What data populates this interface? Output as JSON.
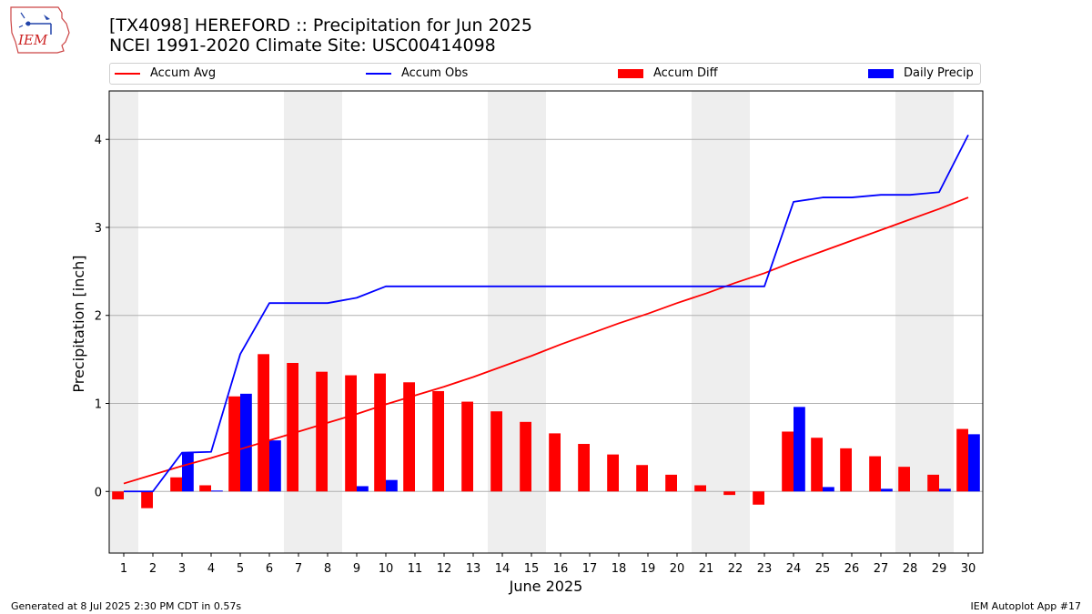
{
  "header": {
    "title_line1": "[TX4098] HEREFORD :: Precipitation for Jun 2025",
    "title_line2": "NCEI 1991-2020 Climate Site: USC00414098"
  },
  "logo": {
    "text": "IEM"
  },
  "footer": {
    "left": "Generated at 8 Jul 2025 2:30 PM CDT in 0.57s",
    "right": "IEM Autoplot App #17"
  },
  "legend": [
    {
      "label": "Accum Avg",
      "kind": "line",
      "color": "#ff0000"
    },
    {
      "label": "Accum Obs",
      "kind": "line",
      "color": "#0000ff"
    },
    {
      "label": "Accum Diff",
      "kind": "bar",
      "color": "#ff0000"
    },
    {
      "label": "Daily Precip",
      "kind": "bar",
      "color": "#0000ff"
    }
  ],
  "chart_data": {
    "type": "bar",
    "xlabel": "June 2025",
    "ylabel": "Precipitation [inch]",
    "x": [
      1,
      2,
      3,
      4,
      5,
      6,
      7,
      8,
      9,
      10,
      11,
      12,
      13,
      14,
      15,
      16,
      17,
      18,
      19,
      20,
      21,
      22,
      23,
      24,
      25,
      26,
      27,
      28,
      29,
      30
    ],
    "xlim": [
      0.5,
      30.5
    ],
    "ylim": [
      -0.7,
      4.55
    ],
    "yticks": [
      0,
      1,
      2,
      3,
      4
    ],
    "grid": true,
    "legend_position": "top",
    "weekend_shading": [
      [
        0.5,
        1.5
      ],
      [
        6.5,
        8.5
      ],
      [
        13.5,
        15.5
      ],
      [
        20.5,
        22.5
      ],
      [
        27.5,
        29.5
      ]
    ],
    "series": [
      {
        "name": "Accum Avg",
        "type": "line",
        "color": "#ff0000",
        "values": [
          0.09,
          0.19,
          0.29,
          0.38,
          0.48,
          0.58,
          0.68,
          0.78,
          0.88,
          0.99,
          1.09,
          1.19,
          1.3,
          1.42,
          1.54,
          1.67,
          1.79,
          1.91,
          2.02,
          2.14,
          2.25,
          2.37,
          2.48,
          2.61,
          2.73,
          2.85,
          2.97,
          3.09,
          3.21,
          3.34
        ]
      },
      {
        "name": "Accum Obs",
        "type": "line",
        "color": "#0000ff",
        "values": [
          0.0,
          0.0,
          0.44,
          0.45,
          1.56,
          2.14,
          2.14,
          2.14,
          2.2,
          2.33,
          2.33,
          2.33,
          2.33,
          2.33,
          2.33,
          2.33,
          2.33,
          2.33,
          2.33,
          2.33,
          2.33,
          2.33,
          2.33,
          3.29,
          3.34,
          3.34,
          3.37,
          3.37,
          3.4,
          4.05
        ]
      },
      {
        "name": "Accum Diff",
        "type": "bar",
        "color": "#ff0000",
        "values": [
          -0.09,
          -0.19,
          0.16,
          0.07,
          1.08,
          1.56,
          1.46,
          1.36,
          1.32,
          1.34,
          1.24,
          1.14,
          1.02,
          0.91,
          0.79,
          0.66,
          0.54,
          0.42,
          0.3,
          0.19,
          0.07,
          -0.04,
          -0.15,
          0.68,
          0.61,
          0.49,
          0.4,
          0.28,
          0.19,
          0.71
        ]
      },
      {
        "name": "Daily Precip",
        "type": "bar",
        "color": "#0000ff",
        "values": [
          0,
          0,
          0.44,
          0.01,
          1.11,
          0.58,
          0,
          0,
          0.06,
          0.13,
          0,
          0,
          0,
          0,
          0,
          0,
          0,
          0,
          0,
          0,
          0,
          0,
          0,
          0.96,
          0.05,
          0,
          0.03,
          0,
          0.03,
          0.65
        ]
      }
    ]
  }
}
